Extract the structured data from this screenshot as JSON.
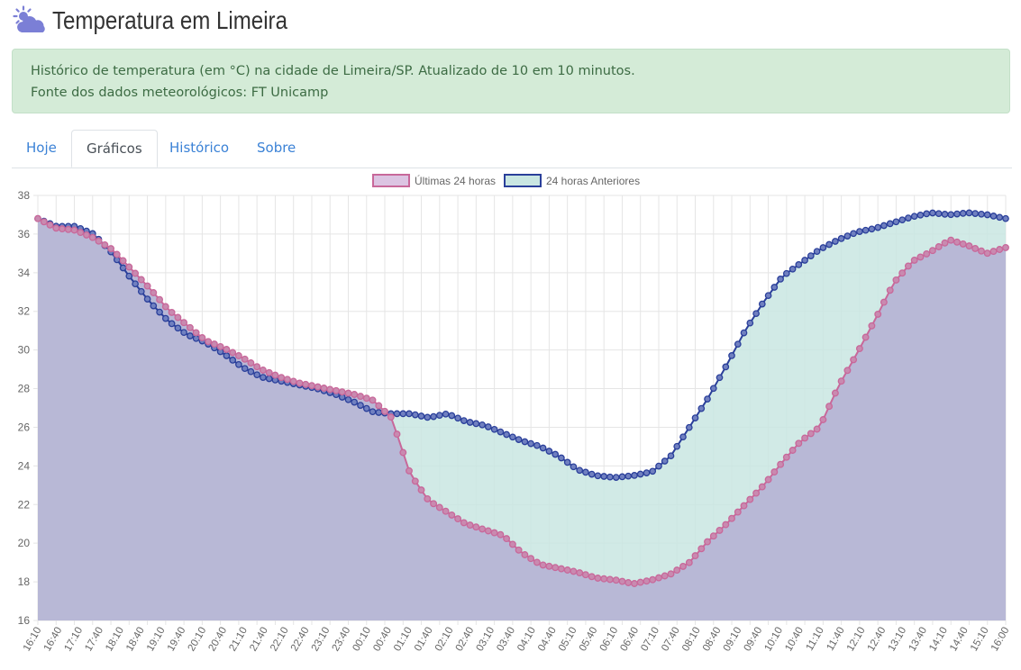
{
  "header": {
    "title": "Temperatura em Limeira",
    "icon": "partly-cloudy-icon"
  },
  "alert": {
    "line1": "Histórico de temperatura (em °C) na cidade de Limeira/SP. Atualizado de 10 em 10 minutos.",
    "line2": "Fonte dos dados meteorológicos: FT Unicamp"
  },
  "tabs": [
    {
      "label": "Hoje",
      "active": false
    },
    {
      "label": "Gráficos",
      "active": true
    },
    {
      "label": "Histórico",
      "active": false
    },
    {
      "label": "Sobre",
      "active": false
    }
  ],
  "colors": {
    "link": "#3b82d6",
    "series1_line": "#c8689a",
    "series1_fill": "#b8b8d6",
    "series2_line": "#2a3f9a",
    "series2_fill": "#c9e6e2"
  },
  "chart_data": {
    "type": "line",
    "x_labels": [
      "16:10",
      "16:40",
      "17:10",
      "17:40",
      "18:10",
      "18:40",
      "19:10",
      "19:40",
      "20:10",
      "20:40",
      "21:10",
      "21:40",
      "22:10",
      "22:40",
      "23:10",
      "23:40",
      "00:10",
      "00:40",
      "01:10",
      "01:40",
      "02:10",
      "02:40",
      "03:10",
      "03:40",
      "04:10",
      "04:40",
      "05:10",
      "05:40",
      "06:10",
      "06:40",
      "07:10",
      "07:40",
      "08:10",
      "08:40",
      "09:10",
      "09:40",
      "10:10",
      "10:40",
      "11:10",
      "11:40",
      "12:10",
      "12:40",
      "13:10",
      "13:40",
      "14:10",
      "14:40",
      "15:10",
      "16:00"
    ],
    "ylim": [
      16,
      38
    ],
    "yticks": [
      16,
      18,
      20,
      22,
      24,
      26,
      28,
      30,
      32,
      34,
      36,
      38
    ],
    "grid": true,
    "legend_position": "top",
    "series": [
      {
        "name": "Últimas 24 horas",
        "keypoints": [
          [
            0,
            36.8
          ],
          [
            1,
            36.3
          ],
          [
            2,
            36.2
          ],
          [
            3,
            35.8
          ],
          [
            4,
            35.2
          ],
          [
            5,
            34.2
          ],
          [
            6,
            33.2
          ],
          [
            7,
            32.1
          ],
          [
            8,
            31.3
          ],
          [
            9,
            30.5
          ],
          [
            10,
            30.1
          ],
          [
            11,
            29.6
          ],
          [
            12,
            29.0
          ],
          [
            13,
            28.6
          ],
          [
            14,
            28.3
          ],
          [
            15,
            28.1
          ],
          [
            16,
            27.9
          ],
          [
            17,
            27.7
          ],
          [
            18,
            27.4
          ],
          [
            19,
            26.5
          ],
          [
            20,
            23.6
          ],
          [
            21,
            22.2
          ],
          [
            22,
            21.6
          ],
          [
            23,
            21.0
          ],
          [
            24,
            20.7
          ],
          [
            25,
            20.4
          ],
          [
            26,
            19.5
          ],
          [
            27,
            18.9
          ],
          [
            28,
            18.7
          ],
          [
            29,
            18.5
          ],
          [
            30,
            18.2
          ],
          [
            31,
            18.1
          ],
          [
            32,
            17.9
          ],
          [
            33,
            18.1
          ],
          [
            34,
            18.4
          ],
          [
            35,
            19.0
          ],
          [
            36,
            20.1
          ],
          [
            37,
            21.0
          ],
          [
            38,
            22.0
          ],
          [
            39,
            23.0
          ],
          [
            40,
            24.2
          ],
          [
            41,
            25.3
          ],
          [
            42,
            26.0
          ],
          [
            43,
            28.1
          ],
          [
            44,
            29.8
          ],
          [
            45,
            31.6
          ],
          [
            46,
            33.5
          ],
          [
            47,
            34.6
          ],
          [
            48,
            35.1
          ],
          [
            49,
            35.7
          ],
          [
            50,
            35.4
          ],
          [
            51,
            35.0
          ],
          [
            52,
            35.3
          ]
        ]
      },
      {
        "name": "24 horas Anteriores",
        "keypoints": [
          [
            0,
            36.8
          ],
          [
            1,
            36.4
          ],
          [
            2,
            36.4
          ],
          [
            3,
            36.0
          ],
          [
            4,
            35.0
          ],
          [
            5,
            33.7
          ],
          [
            6,
            32.5
          ],
          [
            7,
            31.5
          ],
          [
            8,
            30.8
          ],
          [
            9,
            30.4
          ],
          [
            10,
            29.8
          ],
          [
            11,
            29.1
          ],
          [
            12,
            28.6
          ],
          [
            13,
            28.4
          ],
          [
            14,
            28.2
          ],
          [
            15,
            28.0
          ],
          [
            16,
            27.7
          ],
          [
            17,
            27.3
          ],
          [
            18,
            26.8
          ],
          [
            19,
            26.7
          ],
          [
            20,
            26.7
          ],
          [
            21,
            26.5
          ],
          [
            22,
            26.7
          ],
          [
            23,
            26.3
          ],
          [
            24,
            26.1
          ],
          [
            25,
            25.7
          ],
          [
            26,
            25.3
          ],
          [
            27,
            25.0
          ],
          [
            28,
            24.5
          ],
          [
            29,
            23.8
          ],
          [
            30,
            23.5
          ],
          [
            31,
            23.4
          ],
          [
            32,
            23.5
          ],
          [
            33,
            23.7
          ],
          [
            34,
            24.5
          ],
          [
            35,
            26.0
          ],
          [
            36,
            27.5
          ],
          [
            37,
            29.2
          ],
          [
            38,
            31.0
          ],
          [
            39,
            32.5
          ],
          [
            40,
            33.8
          ],
          [
            41,
            34.5
          ],
          [
            42,
            35.2
          ],
          [
            43,
            35.7
          ],
          [
            44,
            36.1
          ],
          [
            45,
            36.3
          ],
          [
            46,
            36.6
          ],
          [
            47,
            36.9
          ],
          [
            48,
            37.1
          ],
          [
            49,
            37.0
          ],
          [
            50,
            37.1
          ],
          [
            51,
            37.0
          ],
          [
            52,
            36.8
          ]
        ]
      }
    ]
  }
}
